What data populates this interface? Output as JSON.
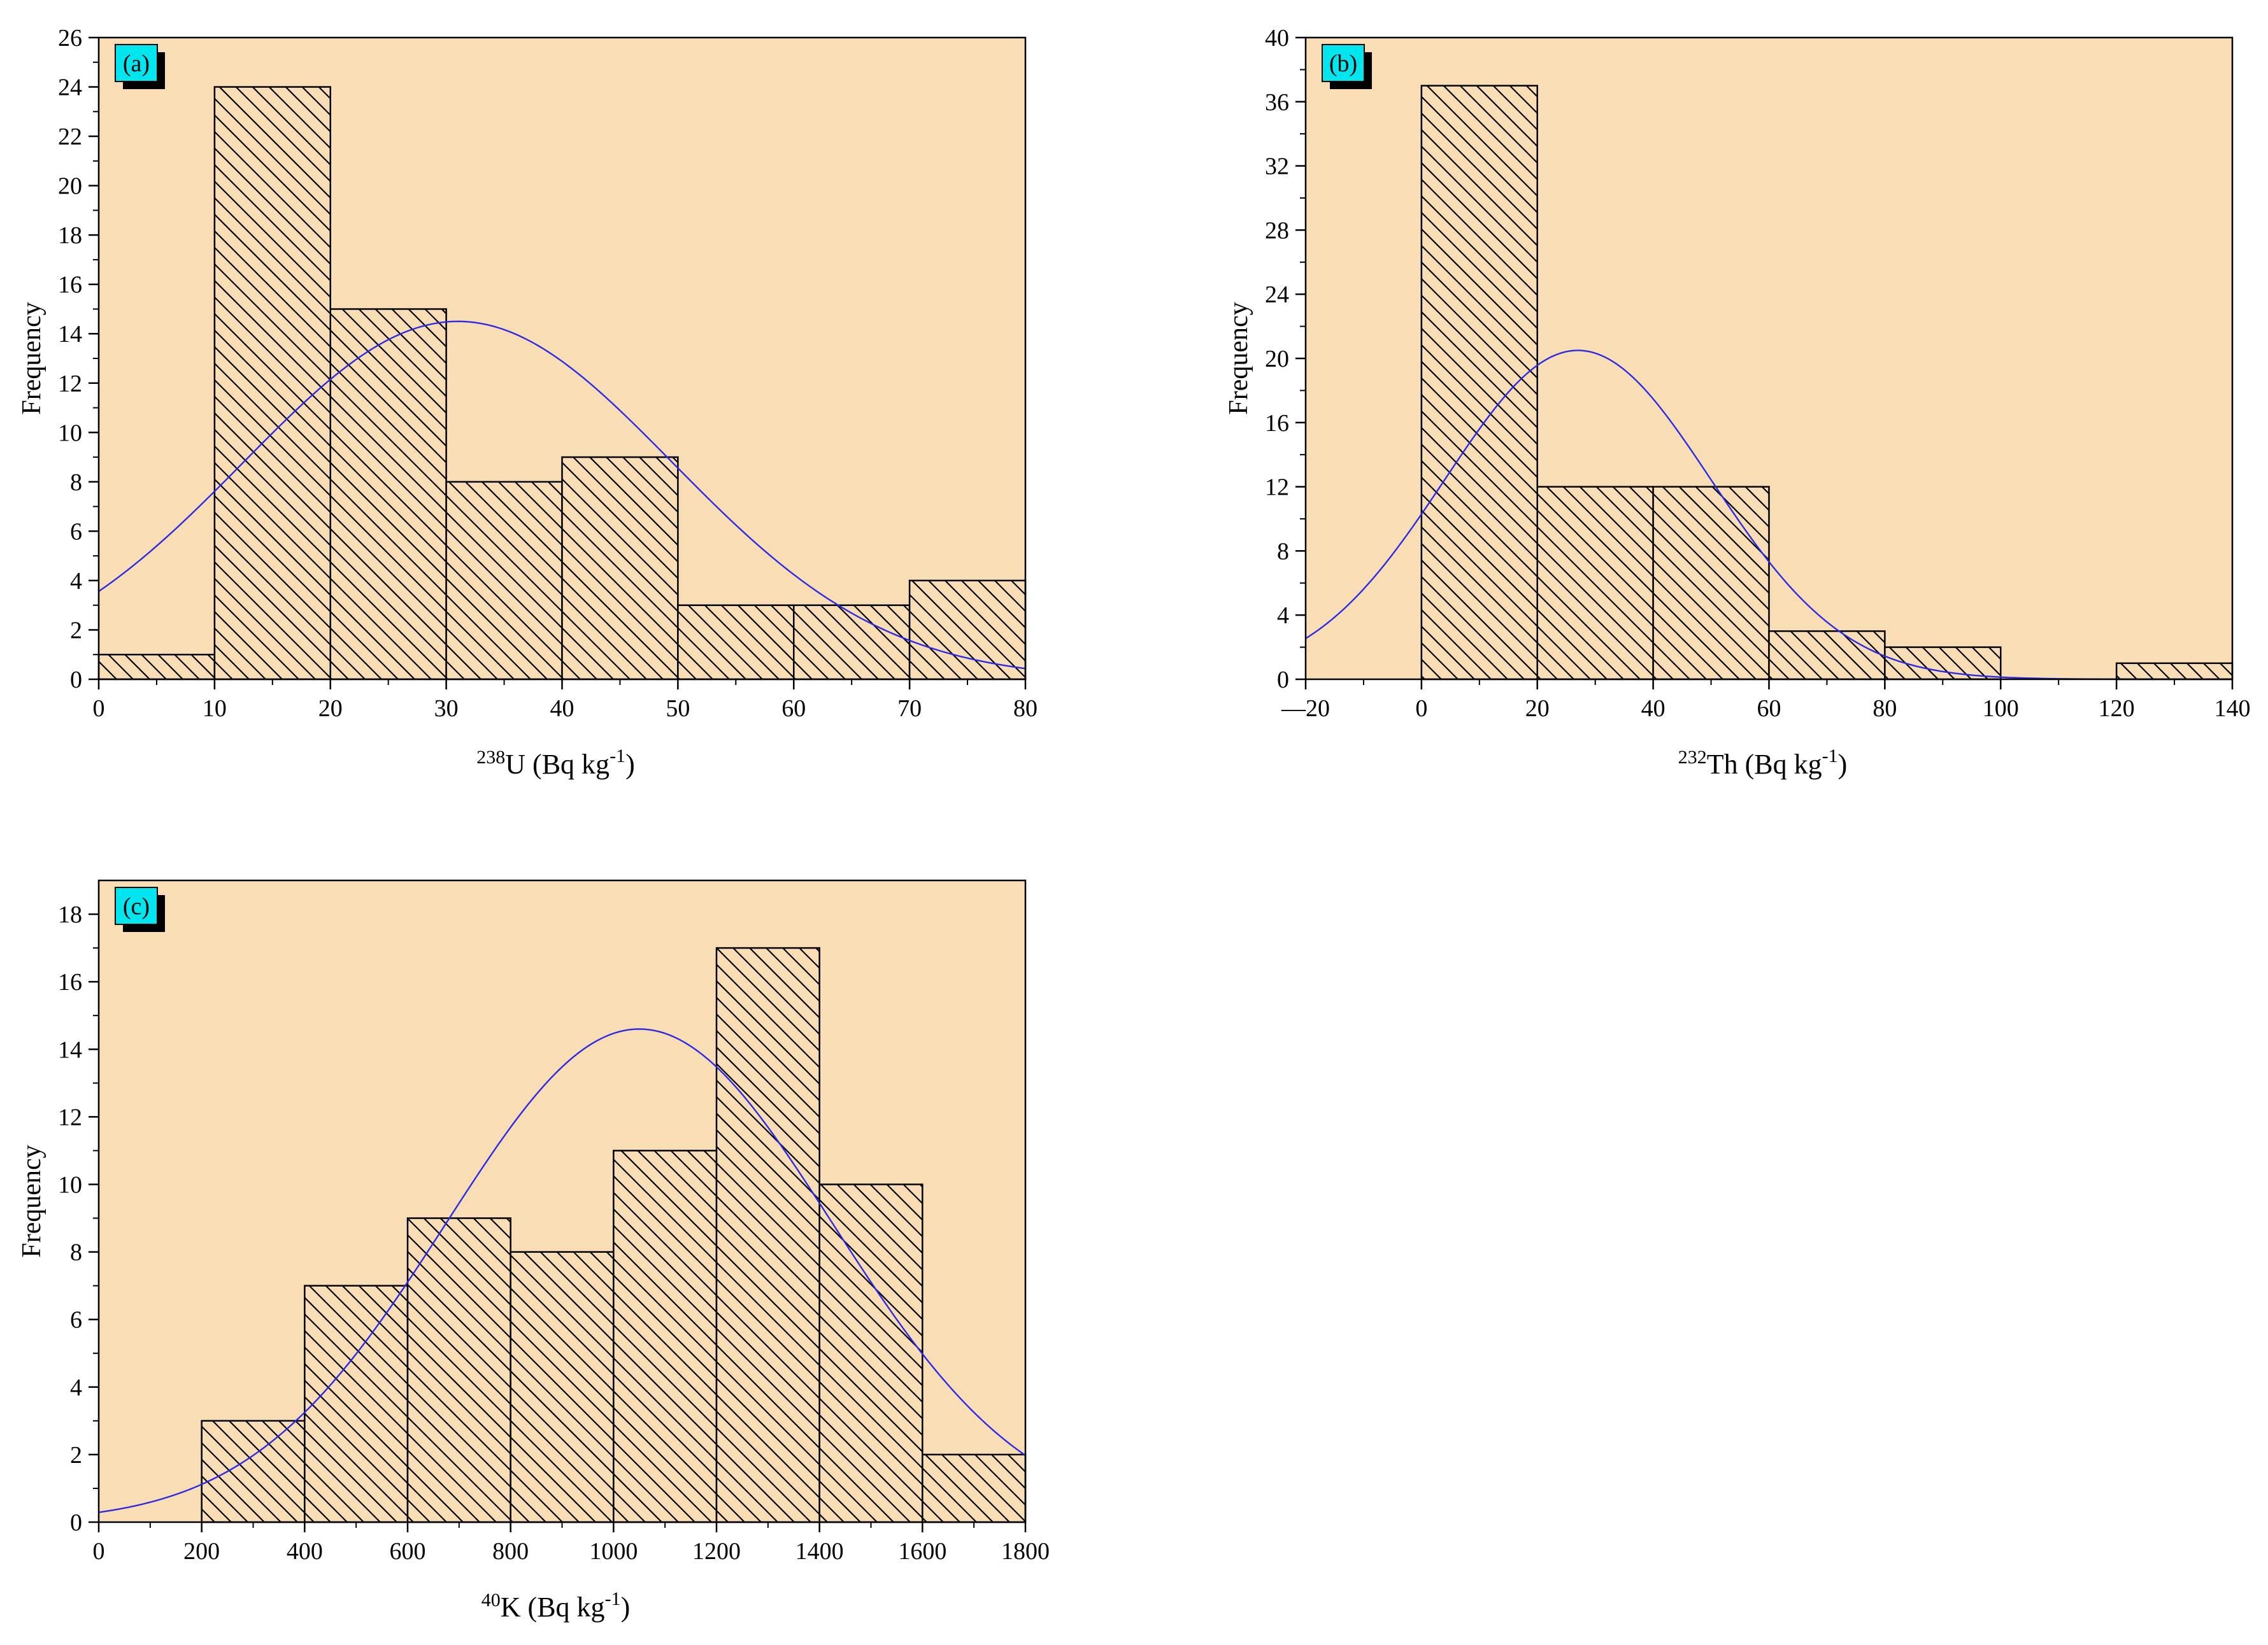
{
  "colors": {
    "plot_background": "#F9DDB5",
    "bar_fill": "#F9DDB5",
    "bar_hatch": "#000000",
    "fit_curve": "#2A2AE6",
    "tag_fill": "#00E5EE",
    "tag_shadow": "#000000"
  },
  "chart_data": [
    {
      "panel_tag": "(a)",
      "type": "bar",
      "subtype": "histogram with normal fit",
      "ylabel": "Frequency",
      "xlabel": {
        "sup": "238",
        "main": "U (Bq kg",
        "exp": "-1",
        "close": ")"
      },
      "xlim": [
        0,
        80
      ],
      "ylim": [
        0,
        26
      ],
      "xticks": [
        0,
        10,
        20,
        30,
        40,
        50,
        60,
        70,
        80
      ],
      "yticks": [
        0,
        2,
        4,
        6,
        8,
        10,
        12,
        14,
        16,
        18,
        20,
        22,
        24,
        26
      ],
      "bins": [
        {
          "from": 0,
          "to": 10,
          "count": 1
        },
        {
          "from": 10,
          "to": 20,
          "count": 24
        },
        {
          "from": 20,
          "to": 30,
          "count": 15
        },
        {
          "from": 30,
          "to": 40,
          "count": 8
        },
        {
          "from": 40,
          "to": 50,
          "count": 9
        },
        {
          "from": 50,
          "to": 60,
          "count": 3
        },
        {
          "from": 60,
          "to": 70,
          "count": 3
        },
        {
          "from": 70,
          "to": 80,
          "count": 4
        }
      ],
      "fit": {
        "kind": "normal",
        "peak_x": 31,
        "peak_y": 14.5,
        "sigma": 18.5
      }
    },
    {
      "panel_tag": "(b)",
      "type": "bar",
      "subtype": "histogram with normal fit",
      "ylabel": "Frequency",
      "xlabel": {
        "sup": "232",
        "main": "Th (Bq kg",
        "exp": "-1",
        "close": ")"
      },
      "xlim": [
        -20,
        140
      ],
      "ylim": [
        0,
        40
      ],
      "xticks": [
        -20,
        0,
        20,
        40,
        60,
        80,
        100,
        120,
        140
      ],
      "xtick_labels": [
        "—20",
        "0",
        "20",
        "40",
        "60",
        "80",
        "100",
        "120",
        "140"
      ],
      "yticks": [
        0,
        4,
        8,
        12,
        16,
        20,
        24,
        28,
        32,
        36,
        40
      ],
      "bins": [
        {
          "from": 0,
          "to": 20,
          "count": 37
        },
        {
          "from": 20,
          "to": 40,
          "count": 12
        },
        {
          "from": 40,
          "to": 60,
          "count": 12
        },
        {
          "from": 60,
          "to": 80,
          "count": 3
        },
        {
          "from": 80,
          "to": 100,
          "count": 2
        },
        {
          "from": 100,
          "to": 120,
          "count": 0
        },
        {
          "from": 120,
          "to": 140,
          "count": 1
        }
      ],
      "fit": {
        "kind": "normal",
        "peak_x": 27,
        "peak_y": 20.5,
        "sigma": 23
      }
    },
    {
      "panel_tag": "(c)",
      "type": "bar",
      "subtype": "histogram with normal fit",
      "ylabel": "Frequency",
      "xlabel": {
        "sup": "40",
        "main": "K (Bq kg",
        "exp": "-1",
        "close": ")"
      },
      "xlim": [
        0,
        1800
      ],
      "ylim": [
        0,
        19
      ],
      "xticks": [
        0,
        200,
        400,
        600,
        800,
        1000,
        1200,
        1400,
        1600,
        1800
      ],
      "yticks": [
        0,
        2,
        4,
        6,
        8,
        10,
        12,
        14,
        16,
        18
      ],
      "bins": [
        {
          "from": 200,
          "to": 400,
          "count": 3
        },
        {
          "from": 400,
          "to": 600,
          "count": 7
        },
        {
          "from": 600,
          "to": 800,
          "count": 9
        },
        {
          "from": 800,
          "to": 1000,
          "count": 8
        },
        {
          "from": 1000,
          "to": 1200,
          "count": 11
        },
        {
          "from": 1200,
          "to": 1400,
          "count": 17
        },
        {
          "from": 1400,
          "to": 1600,
          "count": 10
        },
        {
          "from": 1600,
          "to": 1800,
          "count": 2
        }
      ],
      "fit": {
        "kind": "normal",
        "peak_x": 1050,
        "peak_y": 14.6,
        "sigma": 375
      }
    }
  ]
}
